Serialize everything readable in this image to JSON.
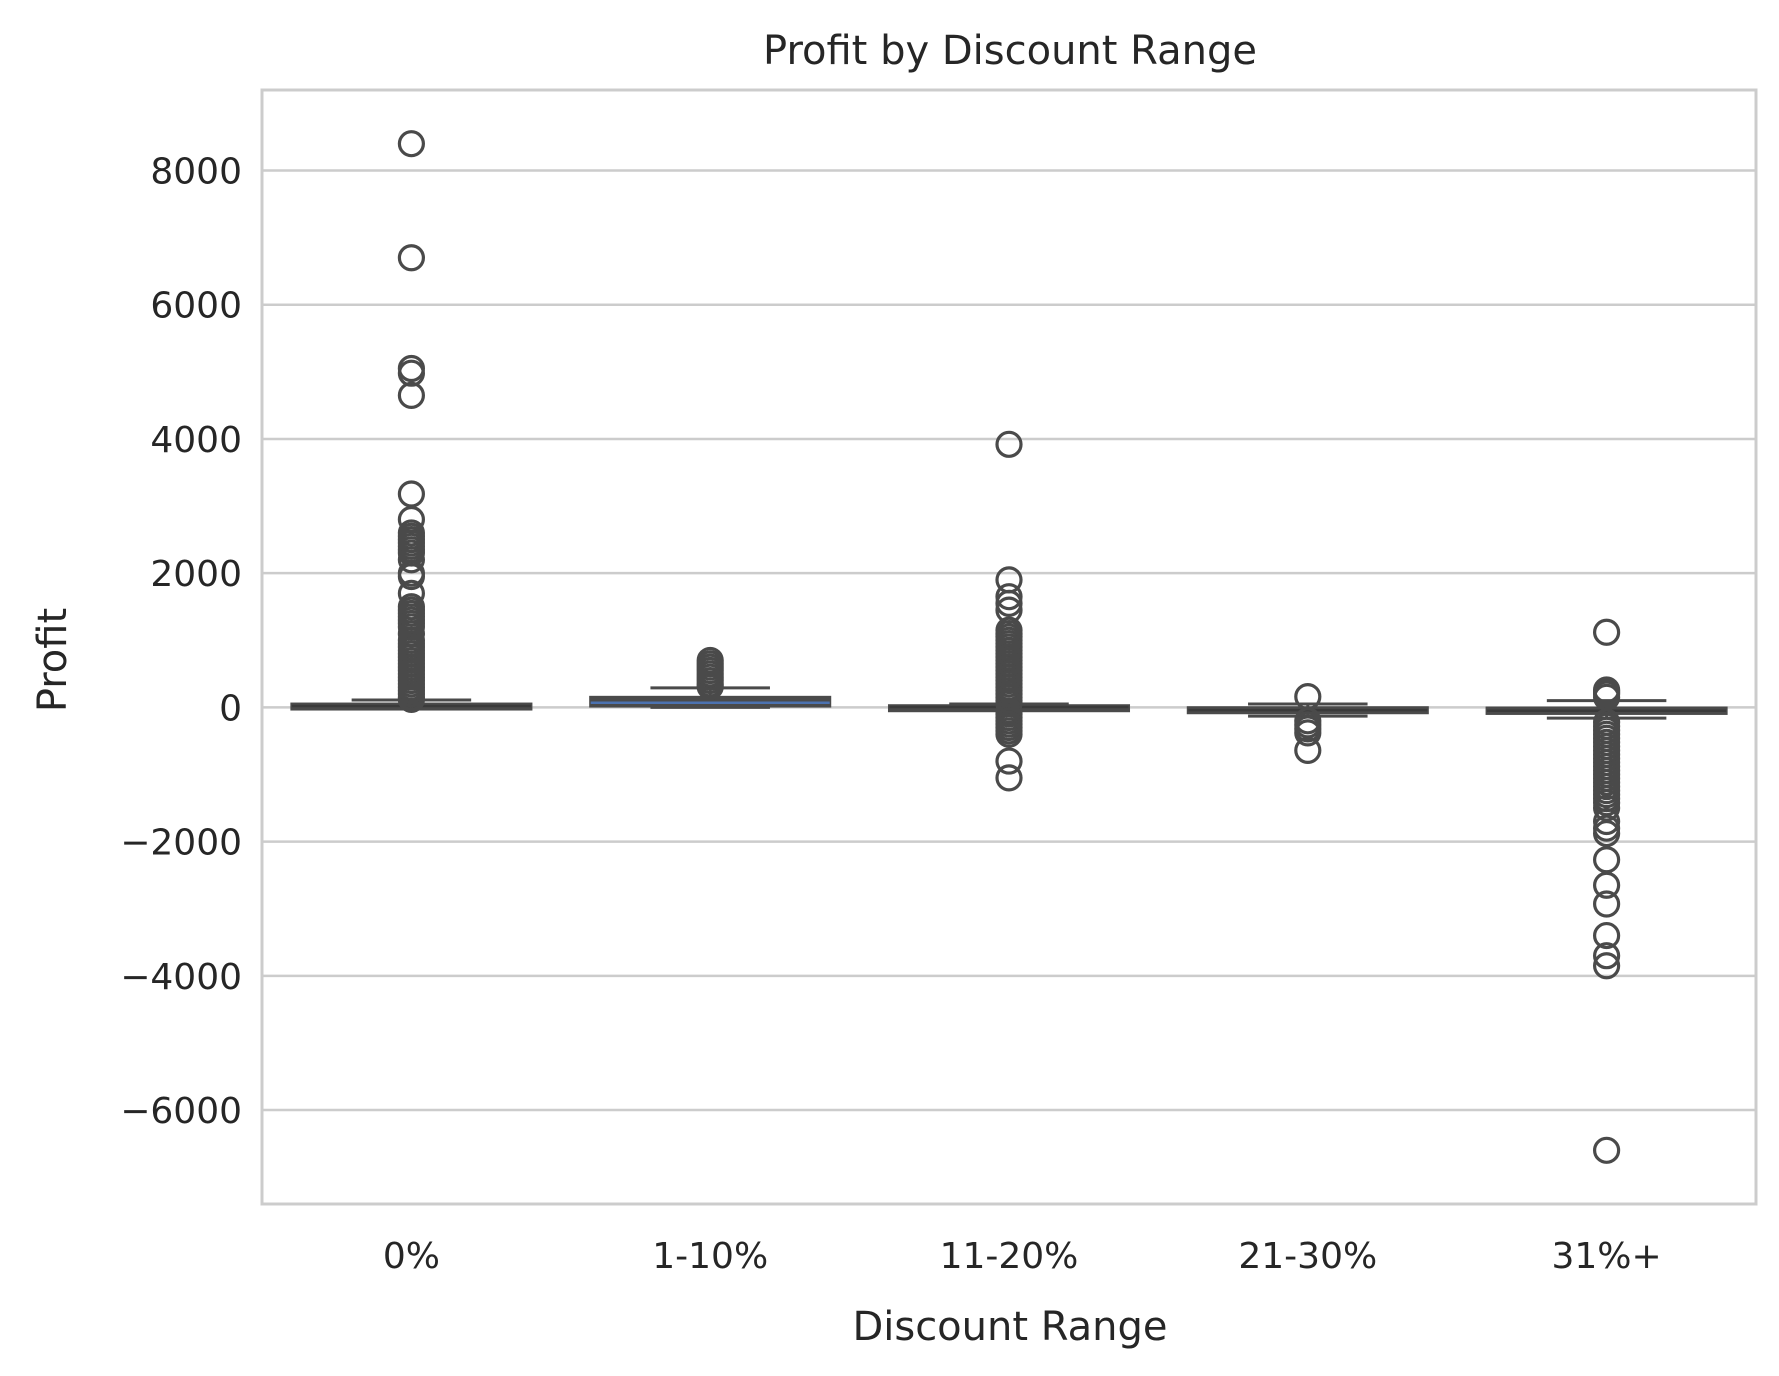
{
  "chart_data": {
    "type": "box",
    "title": "Profit by Discount Range",
    "xlabel": "Discount Range",
    "ylabel": "Profit",
    "ylim": [
      -7400,
      9200
    ],
    "yticks": [
      8000,
      6000,
      4000,
      2000,
      0,
      -2000,
      -4000,
      -6000
    ],
    "ytick_labels": [
      "8000",
      "6000",
      "4000",
      "2000",
      "0",
      "−2000",
      "−4000",
      "−6000"
    ],
    "grid": true,
    "categories": [
      "0%",
      "1-10%",
      "11-20%",
      "21-30%",
      "31%+"
    ],
    "boxes": [
      {
        "category": "0%",
        "whisker_low": 0,
        "q1": 5,
        "median": 20,
        "q3": 50,
        "whisker_high": 110,
        "outliers": [
          8400,
          6700,
          5050,
          4980,
          4650,
          3180,
          2800,
          2600,
          2550,
          2500,
          2450,
          2400,
          2350,
          2300,
          2200,
          2000,
          1950,
          1700,
          1500,
          1450,
          1400,
          1350,
          1300,
          1250,
          1200,
          1100,
          1000,
          950,
          900,
          850,
          800,
          750,
          700,
          650,
          600,
          550,
          500,
          450,
          400,
          350,
          300,
          250,
          200,
          150,
          120
        ]
      },
      {
        "category": "1-10%",
        "whisker_low": 0,
        "q1": 20,
        "median": 70,
        "q3": 150,
        "whisker_high": 290,
        "outliers": [
          700,
          650,
          600,
          550,
          500,
          450,
          400,
          350,
          310
        ]
      },
      {
        "category": "11-20%",
        "whisker_low": -40,
        "q1": -5,
        "median": 5,
        "q3": 25,
        "whisker_high": 50,
        "outliers": [
          3920,
          1900,
          1650,
          1550,
          1450,
          1150,
          1100,
          1050,
          1000,
          950,
          900,
          850,
          800,
          750,
          700,
          650,
          600,
          550,
          500,
          450,
          400,
          350,
          300,
          250,
          200,
          150,
          100,
          60,
          -60,
          -100,
          -150,
          -200,
          -250,
          -300,
          -350,
          -400,
          -800,
          -1050
        ]
      },
      {
        "category": "21-30%",
        "whisker_low": -130,
        "q1": -70,
        "median": -40,
        "q3": -5,
        "whisker_high": 50,
        "outliers": [
          160,
          -200,
          -260,
          -320,
          -380,
          -640
        ]
      },
      {
        "category": "31%+",
        "whisker_low": -160,
        "q1": -90,
        "median": -50,
        "q3": -10,
        "whisker_high": 100,
        "outliers": [
          1120,
          260,
          230,
          200,
          150,
          -220,
          -280,
          -340,
          -400,
          -460,
          -520,
          -580,
          -640,
          -700,
          -760,
          -820,
          -880,
          -940,
          -1000,
          -1060,
          -1120,
          -1180,
          -1240,
          -1300,
          -1360,
          -1420,
          -1500,
          -1700,
          -1800,
          -1880,
          -2270,
          -2650,
          -2930,
          -3400,
          -3700,
          -3850,
          -6600
        ]
      }
    ],
    "colors": {
      "box_line": "#4a4a4a",
      "grid": "#cccccc",
      "median_1_10": "#4c72b0"
    }
  }
}
